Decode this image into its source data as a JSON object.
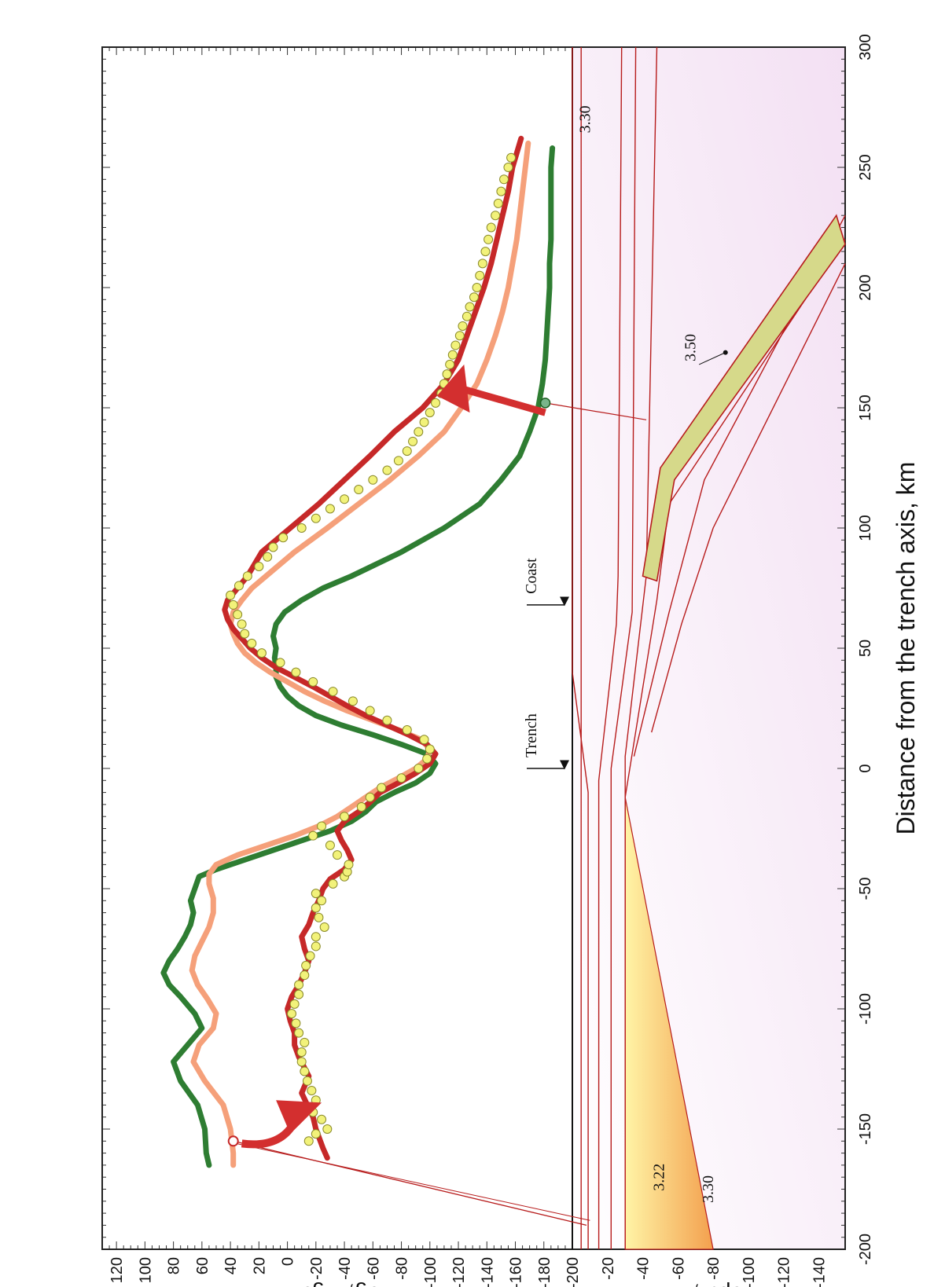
{
  "chart_data": [
    {
      "type": "line",
      "panel": "gravity",
      "xlim": [
        -200,
        300
      ],
      "ylim": [
        -200,
        130
      ],
      "ylabel": "dg, Mgal",
      "yticks": [
        120,
        100,
        80,
        60,
        40,
        20,
        0,
        -20,
        -40,
        -60,
        -80,
        -100,
        -120,
        -140,
        -160,
        -180,
        -200
      ],
      "colors": {
        "green": "#2e7d32",
        "salmon": "#f5a07a",
        "red": "#c62828",
        "points": "#f2f27a"
      },
      "series": [
        {
          "color": "green",
          "x": [
            -165,
            -160,
            -150,
            -140,
            -130,
            -122,
            -115,
            -108,
            -102,
            -95,
            -90,
            -85,
            -80,
            -75,
            -70,
            -65,
            -60,
            -55,
            -50,
            -45,
            -42,
            -38,
            -34,
            -30,
            -26,
            -22,
            -18,
            -14,
            -10,
            -6,
            -2,
            2,
            6,
            10,
            14,
            18,
            22,
            26,
            30,
            34,
            38,
            42,
            46,
            50,
            55,
            60,
            65,
            70,
            75,
            80,
            90,
            100,
            110,
            120,
            130,
            140,
            150,
            160,
            170,
            180,
            190,
            200,
            210,
            220,
            230,
            240,
            250,
            258
          ],
          "y": [
            55,
            57,
            58,
            63,
            75,
            80,
            70,
            60,
            65,
            75,
            83,
            87,
            83,
            77,
            72,
            68,
            66,
            68,
            65,
            62,
            50,
            30,
            10,
            -10,
            -30,
            -45,
            -55,
            -62,
            -75,
            -90,
            -100,
            -104,
            -98,
            -80,
            -60,
            -38,
            -20,
            -8,
            0,
            5,
            8,
            8,
            9,
            8,
            10,
            8,
            2,
            -10,
            -25,
            -45,
            -80,
            -110,
            -135,
            -150,
            -163,
            -170,
            -176,
            -179,
            -181,
            -182,
            -183,
            -184,
            -184,
            -185,
            -185,
            -185,
            -185,
            -186
          ]
        },
        {
          "color": "salmon",
          "x": [
            -165,
            -160,
            -150,
            -140,
            -130,
            -122,
            -115,
            -108,
            -102,
            -96,
            -90,
            -84,
            -78,
            -72,
            -66,
            -60,
            -54,
            -48,
            -44,
            -40,
            -36,
            -32,
            -28,
            -24,
            -20,
            -16,
            -12,
            -8,
            -4,
            0,
            4,
            8,
            12,
            16,
            20,
            24,
            28,
            32,
            36,
            40,
            44,
            48,
            52,
            56,
            60,
            65,
            70,
            75,
            80,
            90,
            100,
            110,
            120,
            130,
            140,
            150,
            160,
            170,
            180,
            190,
            200,
            210,
            220,
            230,
            240,
            250,
            260
          ],
          "y": [
            38,
            38,
            40,
            45,
            58,
            66,
            62,
            52,
            50,
            56,
            63,
            67,
            65,
            60,
            55,
            52,
            52,
            55,
            55,
            50,
            35,
            15,
            -5,
            -22,
            -35,
            -45,
            -55,
            -65,
            -78,
            -90,
            -98,
            -100,
            -94,
            -78,
            -60,
            -42,
            -26,
            -12,
            0,
            12,
            22,
            30,
            35,
            38,
            40,
            38,
            32,
            25,
            15,
            -5,
            -28,
            -50,
            -72,
            -92,
            -110,
            -122,
            -133,
            -140,
            -146,
            -151,
            -155,
            -158,
            -161,
            -163,
            -165,
            -167,
            -169
          ]
        },
        {
          "color": "red",
          "x": [
            -162,
            -158,
            -150,
            -145,
            -140,
            -135,
            -128,
            -120,
            -115,
            -110,
            -105,
            -100,
            -95,
            -90,
            -85,
            -80,
            -75,
            -70,
            -65,
            -60,
            -55,
            -50,
            -46,
            -42,
            -38,
            -34,
            -30,
            -26,
            -22,
            -18,
            -14,
            -10,
            -6,
            -2,
            2,
            6,
            10,
            14,
            18,
            22,
            26,
            30,
            34,
            38,
            42,
            46,
            50,
            54,
            58,
            62,
            66,
            70,
            75,
            80,
            90,
            100,
            110,
            120,
            130,
            140,
            150,
            160,
            170,
            180,
            190,
            200,
            210,
            220,
            230,
            240,
            250,
            262
          ],
          "y": [
            -28,
            -25,
            -20,
            -18,
            -14,
            -10,
            -15,
            -8,
            -5,
            -5,
            -2,
            0,
            -3,
            -8,
            -12,
            -15,
            -12,
            -10,
            -15,
            -18,
            -22,
            -25,
            -30,
            -40,
            -45,
            -42,
            -38,
            -35,
            -40,
            -50,
            -58,
            -65,
            -78,
            -90,
            -100,
            -104,
            -98,
            -85,
            -70,
            -55,
            -42,
            -30,
            -18,
            -5,
            8,
            18,
            26,
            32,
            38,
            42,
            44,
            42,
            35,
            28,
            18,
            -2,
            -22,
            -40,
            -58,
            -75,
            -95,
            -110,
            -120,
            -126,
            -132,
            -138,
            -143,
            -147,
            -151,
            -155,
            -158,
            -164
          ]
        }
      ],
      "observations": [
        [
          -155,
          -15
        ],
        [
          -152,
          -20
        ],
        [
          -150,
          -28
        ],
        [
          -146,
          -24
        ],
        [
          -143,
          -18
        ],
        [
          -138,
          -20
        ],
        [
          -134,
          -17
        ],
        [
          -130,
          -14
        ],
        [
          -126,
          -12
        ],
        [
          -122,
          -10
        ],
        [
          -118,
          -10
        ],
        [
          -114,
          -12
        ],
        [
          -110,
          -8
        ],
        [
          -106,
          -6
        ],
        [
          -102,
          -3
        ],
        [
          -98,
          -5
        ],
        [
          -94,
          -8
        ],
        [
          -90,
          -8
        ],
        [
          -86,
          -12
        ],
        [
          -82,
          -13
        ],
        [
          -78,
          -16
        ],
        [
          -74,
          -20
        ],
        [
          -70,
          -20
        ],
        [
          -66,
          -26
        ],
        [
          -62,
          -22
        ],
        [
          -58,
          -20
        ],
        [
          -55,
          -24
        ],
        [
          -52,
          -20
        ],
        [
          -48,
          -32
        ],
        [
          -45,
          -40
        ],
        [
          -43,
          -42
        ],
        [
          -40,
          -43
        ],
        [
          -36,
          -35
        ],
        [
          -32,
          -30
        ],
        [
          -28,
          -18
        ],
        [
          -24,
          -24
        ],
        [
          -20,
          -40
        ],
        [
          -16,
          -52
        ],
        [
          -12,
          -58
        ],
        [
          -8,
          -66
        ],
        [
          -4,
          -80
        ],
        [
          0,
          -92
        ],
        [
          4,
          -98
        ],
        [
          8,
          -100
        ],
        [
          12,
          -96
        ],
        [
          16,
          -84
        ],
        [
          20,
          -70
        ],
        [
          24,
          -58
        ],
        [
          28,
          -46
        ],
        [
          32,
          -32
        ],
        [
          36,
          -18
        ],
        [
          40,
          -6
        ],
        [
          44,
          5
        ],
        [
          48,
          18
        ],
        [
          52,
          25
        ],
        [
          56,
          30
        ],
        [
          60,
          32
        ],
        [
          64,
          35
        ],
        [
          68,
          38
        ],
        [
          72,
          40
        ],
        [
          76,
          34
        ],
        [
          80,
          28
        ],
        [
          84,
          20
        ],
        [
          88,
          14
        ],
        [
          92,
          10
        ],
        [
          96,
          3
        ],
        [
          100,
          -10
        ],
        [
          104,
          -20
        ],
        [
          108,
          -30
        ],
        [
          112,
          -40
        ],
        [
          116,
          -50
        ],
        [
          120,
          -60
        ],
        [
          124,
          -70
        ],
        [
          128,
          -78
        ],
        [
          132,
          -84
        ],
        [
          136,
          -88
        ],
        [
          140,
          -92
        ],
        [
          144,
          -96
        ],
        [
          148,
          -100
        ],
        [
          152,
          -104
        ],
        [
          156,
          -108
        ],
        [
          160,
          -110
        ],
        [
          164,
          -112
        ],
        [
          168,
          -114
        ],
        [
          172,
          -116
        ],
        [
          176,
          -118
        ],
        [
          180,
          -121
        ],
        [
          184,
          -123
        ],
        [
          188,
          -126
        ],
        [
          192,
          -128
        ],
        [
          196,
          -131
        ],
        [
          200,
          -133
        ],
        [
          205,
          -135
        ],
        [
          210,
          -137
        ],
        [
          215,
          -139
        ],
        [
          220,
          -141
        ],
        [
          225,
          -143
        ],
        [
          230,
          -146
        ],
        [
          235,
          -148
        ],
        [
          240,
          -150
        ],
        [
          245,
          -152
        ],
        [
          250,
          -155
        ],
        [
          254,
          -157
        ]
      ]
    },
    {
      "type": "cross-section",
      "panel": "density-model",
      "xlim": [
        -200,
        300
      ],
      "ylim": [
        -155,
        0
      ],
      "xlabel": "Distance from the trench axis,  km",
      "ylabel": "Depth, km",
      "xticks": [
        -200,
        -150,
        -100,
        -50,
        0,
        50,
        100,
        150,
        200,
        250,
        300
      ],
      "yticks": [
        -200,
        -20,
        -40,
        -60,
        -80,
        -100,
        -120,
        -140
      ],
      "labels": [
        {
          "text": "3.22",
          "x": -170,
          "y": -52
        },
        {
          "text": "3.30",
          "x": -175,
          "y": -80
        },
        {
          "text": "3.50",
          "x": 175,
          "y": -70
        },
        {
          "text": "3.30",
          "x": 270,
          "y": -10
        }
      ],
      "markers": [
        {
          "text": "Trench",
          "x": 0
        },
        {
          "text": "Coast",
          "x": 68
        }
      ]
    }
  ]
}
